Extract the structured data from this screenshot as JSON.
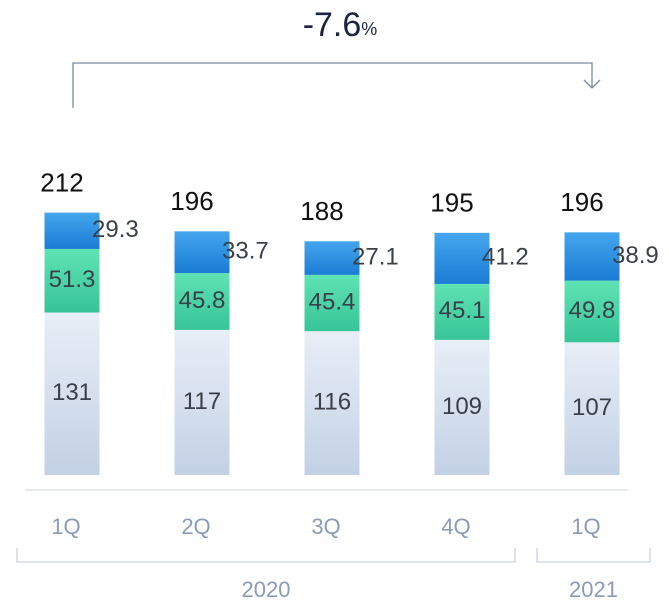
{
  "chart_data": {
    "type": "stacked_bar",
    "annotation": {
      "value": "-7.6",
      "unit": "%"
    },
    "categories": [
      "1Q",
      "2Q",
      "3Q",
      "4Q",
      "1Q"
    ],
    "groups": [
      {
        "label": "2020",
        "span": 4
      },
      {
        "label": "2021",
        "span": 1
      }
    ],
    "totals": [
      212,
      196,
      188,
      195,
      196
    ],
    "series": [
      {
        "color": "#c9d6e8",
        "values": [
          131,
          117,
          116,
          109,
          107
        ]
      },
      {
        "color": "#46d2a2",
        "values": [
          51.3,
          45.8,
          45.4,
          45.1,
          49.8
        ]
      },
      {
        "color": "#2b8fe0",
        "values": [
          29.3,
          33.7,
          27.1,
          41.2,
          38.9
        ]
      }
    ]
  }
}
